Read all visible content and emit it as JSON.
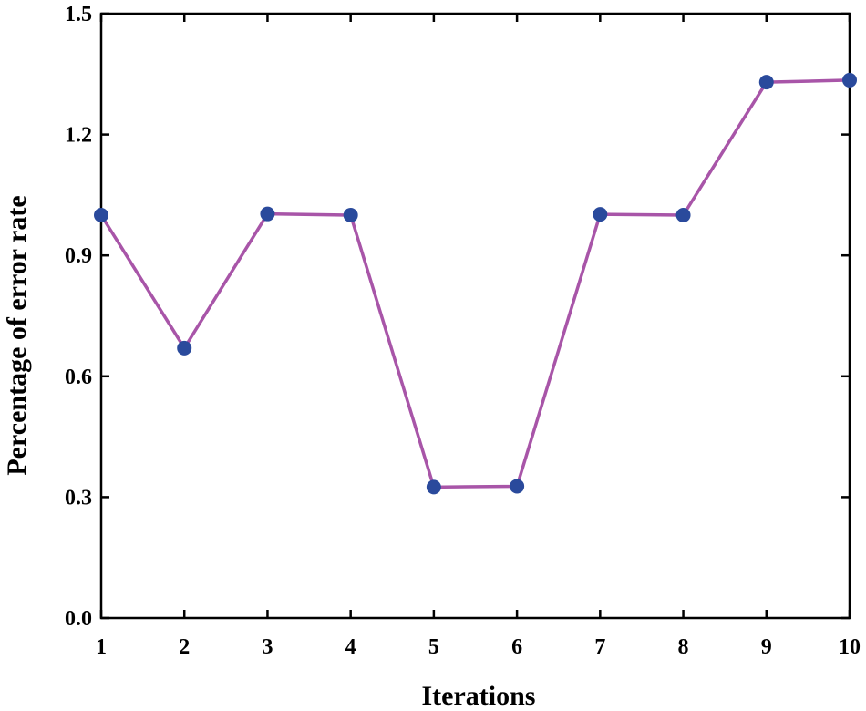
{
  "chart_data": {
    "type": "line",
    "title": "",
    "xlabel": "Iterations",
    "ylabel": "Percentage of error rate",
    "x": [
      1,
      2,
      3,
      4,
      5,
      6,
      7,
      8,
      9,
      10
    ],
    "x_tick_labels": [
      "1",
      "2",
      "3",
      "4",
      "5",
      "6",
      "7",
      "8",
      "9",
      "10"
    ],
    "y_tick_labels": [
      "0.0",
      "0.3",
      "0.6",
      "0.9",
      "1.2",
      "1.5"
    ],
    "y_ticks": [
      0.0,
      0.3,
      0.6,
      0.9,
      1.2,
      1.5
    ],
    "xlim": [
      1,
      10
    ],
    "ylim": [
      0.0,
      1.5
    ],
    "grid": false,
    "series": [
      {
        "values": [
          1.0,
          0.67,
          1.003,
          1.0,
          0.325,
          0.327,
          1.002,
          1.0,
          1.33,
          1.335
        ],
        "line_color": "#a855a8",
        "marker_color": "#2a4a9c"
      }
    ]
  }
}
